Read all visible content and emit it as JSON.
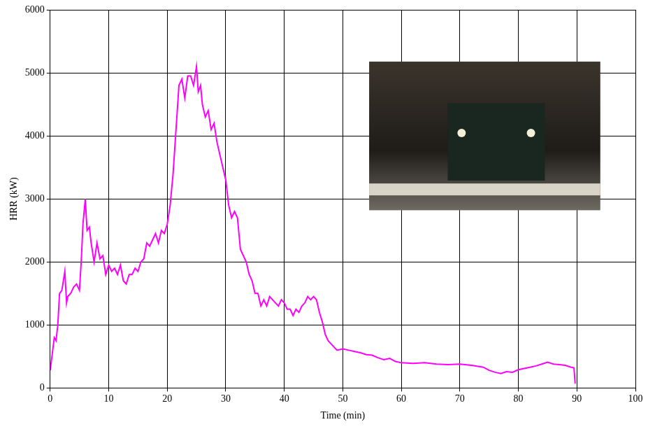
{
  "chart_data": {
    "type": "line",
    "x_label": "Time (min)",
    "y_label": "HRR (kW)",
    "series": [
      {
        "name": "HRR",
        "color": "#ff00ff",
        "x": [
          0,
          0.3,
          0.7,
          1,
          1.3,
          1.6,
          2,
          2.5,
          2.8,
          3,
          3.5,
          4,
          4.5,
          5,
          5.3,
          5.6,
          6,
          6.3,
          6.7,
          7,
          7.5,
          8,
          8.5,
          9,
          9.5,
          10,
          10.5,
          11,
          11.5,
          12,
          12.5,
          13,
          13.5,
          14,
          14.5,
          15,
          15.5,
          16,
          16.5,
          17,
          17.5,
          18,
          18.5,
          19,
          19.5,
          20,
          20.5,
          21,
          21.5,
          22,
          22.5,
          23,
          23.5,
          24,
          24.5,
          25,
          25.3,
          25.7,
          26,
          26.5,
          27,
          27.5,
          28,
          28.5,
          29,
          29.5,
          30,
          30.5,
          31,
          31.5,
          32,
          32.5,
          33,
          33.5,
          34,
          34.5,
          35,
          35.5,
          36,
          36.5,
          37,
          37.5,
          38,
          38.5,
          39,
          39.5,
          40,
          40.5,
          41,
          41.5,
          42,
          42.5,
          43,
          43.5,
          44,
          44.5,
          45,
          45.5,
          46,
          46.5,
          47,
          47.5,
          48,
          48.5,
          49,
          50,
          51,
          52,
          53,
          54,
          55,
          56,
          57,
          58,
          59,
          60,
          62,
          64,
          66,
          68,
          70,
          72,
          74,
          75,
          76,
          77,
          78,
          79,
          80,
          81,
          82,
          83,
          84,
          85,
          86,
          87,
          88,
          89,
          89.5,
          89.7
        ],
        "values": [
          280,
          500,
          800,
          750,
          1000,
          1500,
          1550,
          1850,
          1350,
          1450,
          1500,
          1600,
          1650,
          1550,
          2000,
          2600,
          3000,
          2500,
          2550,
          2300,
          2000,
          2300,
          2050,
          2100,
          1800,
          1950,
          1850,
          1900,
          1800,
          1950,
          1700,
          1650,
          1800,
          1800,
          1900,
          1850,
          2000,
          2050,
          2300,
          2250,
          2350,
          2450,
          2300,
          2500,
          2450,
          2600,
          2900,
          3400,
          4100,
          4800,
          4900,
          4600,
          4950,
          4950,
          4800,
          5100,
          4700,
          4800,
          4500,
          4300,
          4400,
          4100,
          4200,
          3900,
          3700,
          3500,
          3300,
          2900,
          2700,
          2800,
          2700,
          2200,
          2100,
          2000,
          1800,
          1700,
          1500,
          1500,
          1300,
          1400,
          1300,
          1450,
          1400,
          1350,
          1300,
          1400,
          1350,
          1250,
          1250,
          1150,
          1250,
          1200,
          1300,
          1350,
          1450,
          1400,
          1450,
          1400,
          1200,
          1050,
          850,
          750,
          700,
          650,
          600,
          620,
          600,
          580,
          560,
          530,
          520,
          480,
          450,
          470,
          420,
          400,
          390,
          400,
          380,
          370,
          380,
          360,
          330,
          280,
          250,
          230,
          260,
          250,
          290,
          310,
          330,
          350,
          380,
          410,
          380,
          370,
          360,
          330,
          320,
          70
        ]
      }
    ],
    "xlim": [
      0,
      100
    ],
    "xticks": [
      0,
      10,
      20,
      30,
      40,
      50,
      60,
      70,
      80,
      90,
      100
    ],
    "ylim": [
      0,
      6000
    ],
    "yticks": [
      0,
      1000,
      2000,
      3000,
      4000,
      5000,
      6000
    ],
    "grid": true
  }
}
